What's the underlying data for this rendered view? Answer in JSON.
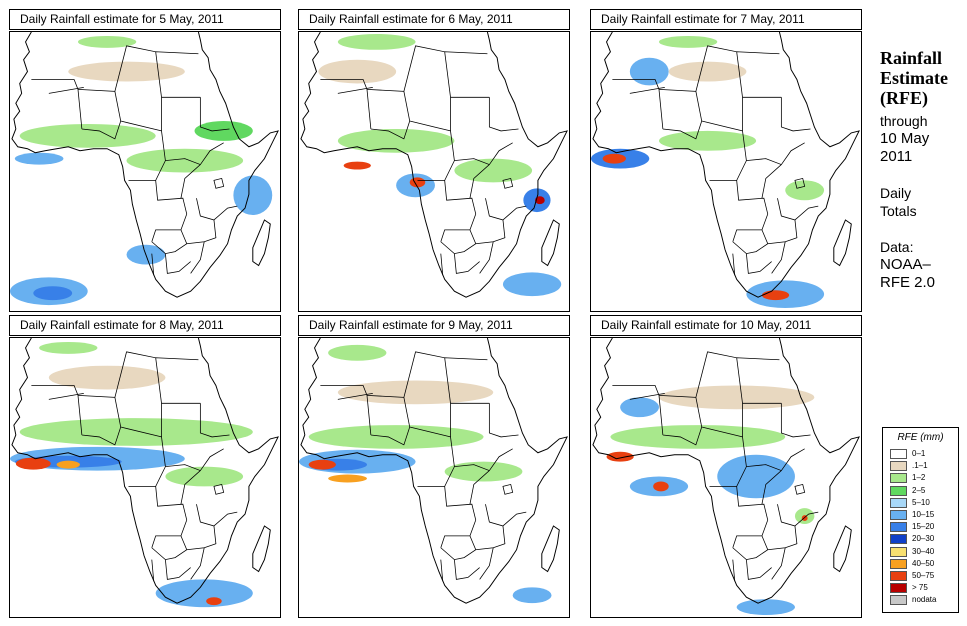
{
  "panels": [
    {
      "title": "Daily Rainfall estimate for  5 May, 2011"
    },
    {
      "title": "Daily Rainfall estimate for  6 May, 2011"
    },
    {
      "title": "Daily Rainfall estimate for  7 May, 2011"
    },
    {
      "title": "Daily Rainfall estimate for  8 May, 2011"
    },
    {
      "title": "Daily Rainfall estimate for  9 May, 2011"
    },
    {
      "title": "Daily Rainfall estimate for  10 May, 2011"
    }
  ],
  "sidebar": {
    "title_line1": "Rainfall",
    "title_line2": "Estimate",
    "title_line3": "(RFE)",
    "through": "through",
    "date_line1": "10 May",
    "date_line2": "2011",
    "daily": "Daily",
    "totals": "Totals",
    "data_label": "Data:",
    "source_line1": "NOAA–",
    "source_line2": "RFE 2.0"
  },
  "legend": {
    "title": "RFE (mm)",
    "items": [
      {
        "label": "0–1",
        "color": "#ffffff"
      },
      {
        "label": ".1–1",
        "color": "#e8d8c0"
      },
      {
        "label": "1–2",
        "color": "#a8e88c"
      },
      {
        "label": "2–5",
        "color": "#60d860"
      },
      {
        "label": "5–10",
        "color": "#a8d8f8"
      },
      {
        "label": "10–15",
        "color": "#68b0f0"
      },
      {
        "label": "15–20",
        "color": "#3880e8"
      },
      {
        "label": "20–30",
        "color": "#1040c8"
      },
      {
        "label": "30–40",
        "color": "#f8e070"
      },
      {
        "label": "40–50",
        "color": "#f8a020"
      },
      {
        "label": "50–75",
        "color": "#e84010"
      },
      {
        "label": "> 75",
        "color": "#b80000"
      },
      {
        "label": "nodata",
        "color": "#c8c8c8"
      }
    ]
  }
}
